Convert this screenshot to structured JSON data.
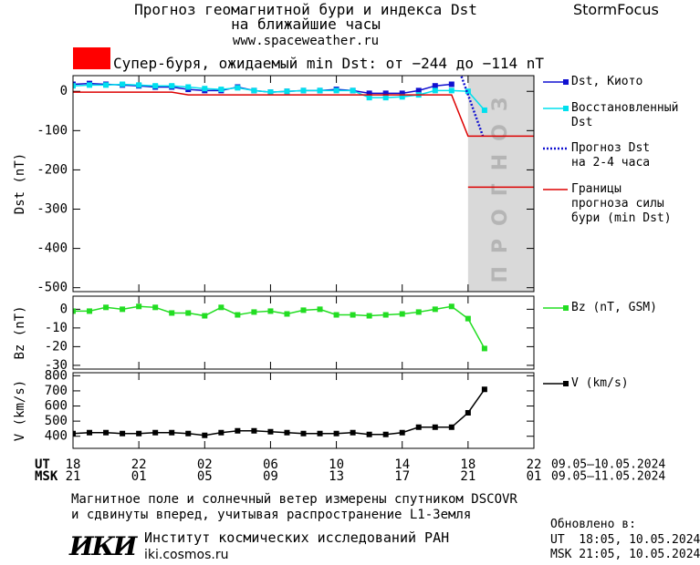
{
  "header": {
    "title": [
      "Прогноз геомагнитной бури и индекса Dst",
      "на ближайшие часы"
    ],
    "url": "www.spaceweather.ru",
    "brand": "StormFocus",
    "alert": {
      "text": "Супер-буря, ожидаемый min Dst: от −244 до −114 nT",
      "color": "#ff0000"
    }
  },
  "time_axis": {
    "xlim": [
      0,
      28
    ],
    "rows": [
      {
        "name": "UT",
        "dates": "09.05–10.05.2024",
        "ticks": [
          {
            "value": 0,
            "label": "18"
          },
          {
            "value": 4,
            "label": "22"
          },
          {
            "value": 8,
            "label": "02"
          },
          {
            "value": 12,
            "label": "06"
          },
          {
            "value": 16,
            "label": "10"
          },
          {
            "value": 20,
            "label": "14"
          },
          {
            "value": 24,
            "label": "18"
          },
          {
            "value": 28,
            "label": "22"
          }
        ]
      },
      {
        "name": "MSK",
        "dates": "09.05–11.05.2024",
        "ticks": [
          {
            "value": 0,
            "label": "21"
          },
          {
            "value": 4,
            "label": "01"
          },
          {
            "value": 8,
            "label": "05"
          },
          {
            "value": 12,
            "label": "09"
          },
          {
            "value": 16,
            "label": "13"
          },
          {
            "value": 20,
            "label": "17"
          },
          {
            "value": 24,
            "label": "21"
          },
          {
            "value": 28,
            "label": "01"
          }
        ]
      }
    ]
  },
  "chart_data": [
    {
      "type": "line",
      "y_label": "Dst (nT)",
      "ylim": [
        -510,
        40
      ],
      "yticks": [
        0,
        -100,
        -200,
        -300,
        -400,
        -500
      ],
      "forecast_zone": {
        "xrange": [
          24,
          28
        ],
        "label": "ПРОГНОЗ",
        "color": "#d9d9d9"
      },
      "series": [
        {
          "name": "Dst, Киото",
          "color": "#1010d0",
          "marker": "square",
          "line": "solid",
          "x": [
            0,
            1,
            2,
            3,
            4,
            5,
            6,
            7,
            8,
            9,
            10,
            11,
            12,
            13,
            14,
            15,
            16,
            17,
            18,
            19,
            20,
            21,
            22,
            23
          ],
          "values": [
            18,
            20,
            18,
            16,
            14,
            11,
            11,
            5,
            2,
            2,
            11,
            2,
            -2,
            0,
            2,
            2,
            5,
            2,
            -5,
            -5,
            -5,
            2,
            14,
            18
          ]
        },
        {
          "name": "Восстановленный\nDst",
          "color": "#00e0ee",
          "marker": "square",
          "line": "solid",
          "x": [
            0,
            1,
            2,
            3,
            4,
            5,
            6,
            7,
            8,
            9,
            10,
            11,
            12,
            13,
            14,
            15,
            16,
            17,
            18,
            19,
            20,
            21,
            22,
            23,
            24,
            25
          ],
          "values": [
            14,
            16,
            16,
            18,
            16,
            14,
            14,
            11,
            7,
            5,
            9,
            2,
            -2,
            0,
            2,
            2,
            2,
            2,
            -16,
            -16,
            -14,
            -9,
            2,
            2,
            0,
            -48
          ]
        },
        {
          "name": "Прогноз Dst\nна 2-4 часа",
          "color": "#1010d0",
          "marker": "none",
          "line": "dotted",
          "x": [
            23.6,
            24.9
          ],
          "values": [
            38,
            -114
          ]
        },
        {
          "name": "Границы\nпрогноза силы\nбури (min Dst)",
          "color": "#dd0000",
          "marker": "none",
          "line": "solid",
          "x": [
            0,
            6,
            7,
            23,
            24,
            28,
            28,
            24,
            28
          ],
          "values": [
            -2,
            -2,
            -9,
            -9,
            -114,
            -114,
            null,
            -244,
            -244
          ]
        }
      ]
    },
    {
      "type": "line",
      "y_label": "Bz (nT)",
      "ylim": [
        -32,
        7
      ],
      "yticks": [
        0,
        -10,
        -20,
        -30
      ],
      "series": [
        {
          "name": "Bz (nT, GSM)",
          "color": "#22dd22",
          "marker": "square",
          "line": "solid",
          "x": [
            0,
            1,
            2,
            3,
            4,
            5,
            6,
            7,
            8,
            9,
            10,
            11,
            12,
            13,
            14,
            15,
            16,
            17,
            18,
            19,
            20,
            21,
            22,
            23,
            24,
            25
          ],
          "values": [
            -1,
            -1,
            1,
            0,
            1.5,
            1,
            -2,
            -2,
            -3.5,
            1,
            -3,
            -1.5,
            -1,
            -2.5,
            -0.5,
            0,
            -3,
            -3,
            -3.5,
            -3,
            -2.5,
            -1.5,
            0,
            1.5,
            -5,
            -21
          ]
        }
      ]
    },
    {
      "type": "line",
      "y_label": "V (km/s)",
      "ylim": [
        320,
        820
      ],
      "yticks": [
        400,
        500,
        600,
        700,
        800
      ],
      "series": [
        {
          "name": "V (km/s)",
          "color": "#000000",
          "marker": "square",
          "line": "solid",
          "x": [
            0,
            1,
            2,
            3,
            4,
            5,
            6,
            7,
            8,
            9,
            10,
            11,
            12,
            13,
            14,
            15,
            16,
            17,
            18,
            19,
            20,
            21,
            22,
            23,
            24,
            25
          ],
          "values": [
            418,
            424,
            424,
            418,
            418,
            424,
            424,
            418,
            406,
            424,
            436,
            436,
            430,
            424,
            418,
            418,
            418,
            424,
            412,
            412,
            424,
            460,
            460,
            460,
            555,
            710
          ]
        }
      ]
    }
  ],
  "footer": {
    "note": [
      "Магнитное поле и солнечный ветер измерены спутником DSCOVR",
      "и сдвинуты вперед, учитывая распространение L1-Земля"
    ],
    "updated": {
      "title": "Обновлено в:",
      "lines": [
        "UT  18:05, 10.05.2024",
        "MSK 21:05, 10.05.2024"
      ]
    },
    "institute": {
      "logo": "ИКИ",
      "name": "Институт космических исследований РАН",
      "url": "iki.cosmos.ru"
    }
  }
}
